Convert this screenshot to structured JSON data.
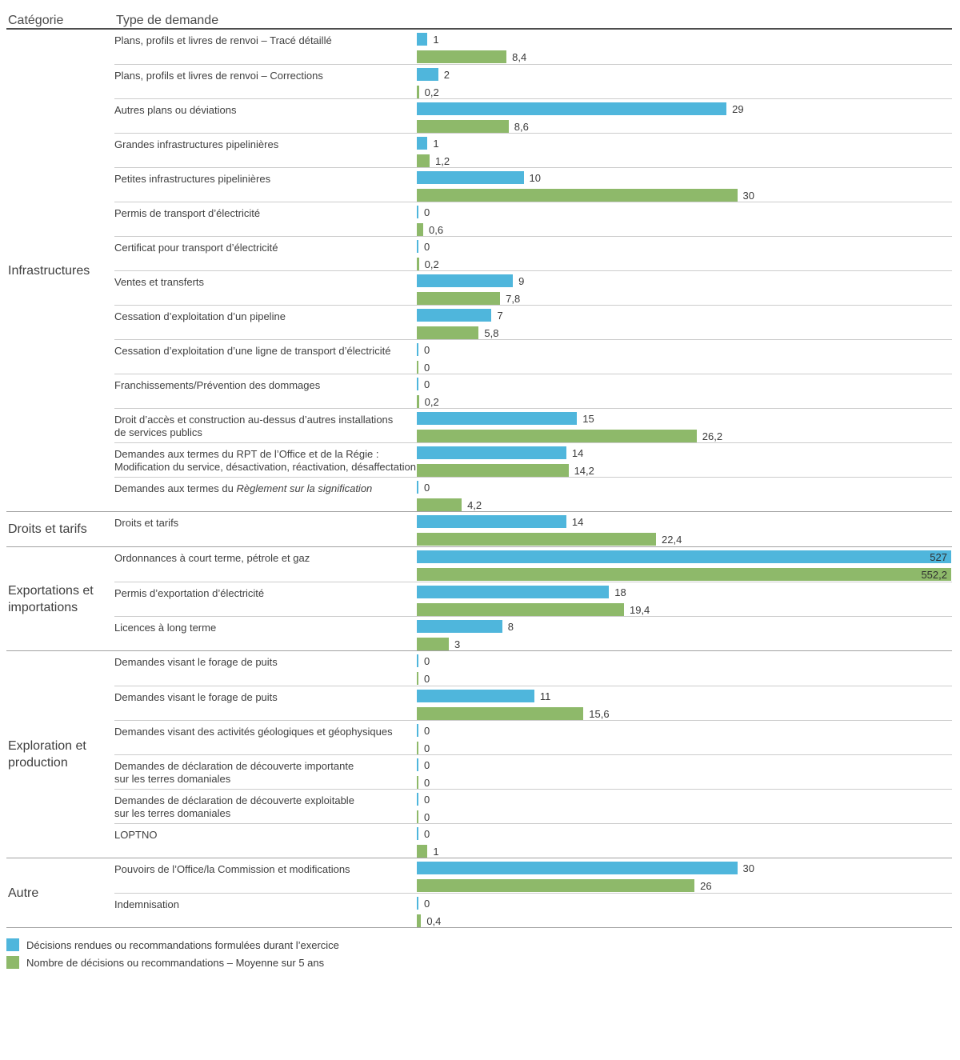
{
  "header": {
    "category_col": "Catégorie",
    "type_col": "Type de demande"
  },
  "colors": {
    "current": "#4fb6dc",
    "average": "#8eb96a"
  },
  "legend": [
    {
      "series": "current",
      "label": "Décisions rendues ou recommandations formulées durant l’exercice"
    },
    {
      "series": "average",
      "label": "Nombre de décisions ou recommandations – Moyenne sur 5 ans"
    }
  ],
  "chart_data": {
    "type": "bar",
    "orientation": "horizontal",
    "series": [
      {
        "name": "Décisions rendues ou recommandations formulées durant l’exercice",
        "key": "current",
        "color": "#4fb6dc"
      },
      {
        "name": "Nombre de décisions ou recommandations – Moyenne sur 5 ans",
        "key": "average",
        "color": "#8eb96a"
      }
    ],
    "value_axis_visible_max": 50,
    "note": "Bars for 527 and 552,2 are clipped at full chart width with value labels inside the bars",
    "groups": [
      {
        "category": "Infrastructures",
        "rows": [
          {
            "label": "Plans, profils et livres de renvoi – Tracé détaillé",
            "current": 1,
            "average": 8.4,
            "current_label": "1",
            "average_label": "8,4"
          },
          {
            "label": "Plans, profils et livres de renvoi – Corrections",
            "current": 2,
            "average": 0.2,
            "current_label": "2",
            "average_label": "0,2"
          },
          {
            "label": "Autres plans ou déviations",
            "current": 29,
            "average": 8.6,
            "current_label": "29",
            "average_label": "8,6"
          },
          {
            "label": "Grandes infrastructures pipelinières",
            "current": 1,
            "average": 1.2,
            "current_label": "1",
            "average_label": "1,2"
          },
          {
            "label": "Petites infrastructures pipelinières",
            "current": 10,
            "average": 30,
            "current_label": "10",
            "average_label": "30"
          },
          {
            "label": "Permis de transport d’électricité",
            "current": 0,
            "average": 0.6,
            "current_label": "0",
            "average_label": "0,6"
          },
          {
            "label": "Certificat pour transport d’électricité",
            "current": 0,
            "average": 0.2,
            "current_label": "0",
            "average_label": "0,2"
          },
          {
            "label": "Ventes et transferts",
            "current": 9,
            "average": 7.8,
            "current_label": "9",
            "average_label": "7,8"
          },
          {
            "label": "Cessation d’exploitation d’un pipeline",
            "current": 7,
            "average": 5.8,
            "current_label": "7",
            "average_label": "5,8"
          },
          {
            "label": "Cessation d’exploitation d’une ligne de transport d’électricité",
            "current": 0,
            "average": 0,
            "current_label": "0",
            "average_label": "0"
          },
          {
            "label": "Franchissements/Prévention des dommages",
            "current": 0,
            "average": 0.2,
            "current_label": "0",
            "average_label": "0,2"
          },
          {
            "label": "Droit d’accès et construction au-dessus d’autres installations",
            "label2": "de services publics",
            "current": 15,
            "average": 26.2,
            "current_label": "15",
            "average_label": "26,2"
          },
          {
            "label": "Demandes aux termes du RPT de l’Office et de la Régie :",
            "label2": "Modification du service, désactivation, réactivation, désaffectation",
            "current": 14,
            "average": 14.2,
            "current_label": "14",
            "average_label": "14,2"
          },
          {
            "label": "Demandes aux termes du ",
            "label_italic": "Règlement sur la signification",
            "current": 0,
            "average": 4.2,
            "current_label": "0",
            "average_label": "4,2"
          }
        ]
      },
      {
        "category": "Droits et tarifs",
        "rows": [
          {
            "label": "Droits et tarifs",
            "current": 14,
            "average": 22.4,
            "current_label": "14",
            "average_label": "22,4"
          }
        ]
      },
      {
        "category": "Exportations et importations",
        "rows": [
          {
            "label": "Ordonnances à court terme, pétrole et gaz",
            "current": 527,
            "average": 552.2,
            "current_label": "527",
            "average_label": "552,2"
          },
          {
            "label": "Permis d’exportation d’électricité",
            "current": 18,
            "average": 19.4,
            "current_label": "18",
            "average_label": "19,4"
          },
          {
            "label": "Licences à long terme",
            "current": 8,
            "average": 3,
            "current_label": "8",
            "average_label": "3"
          }
        ]
      },
      {
        "category": "Exploration et production",
        "rows": [
          {
            "label": "Demandes visant le forage de puits",
            "current": 0,
            "average": 0,
            "current_label": "0",
            "average_label": "0"
          },
          {
            "label": "Demandes visant le forage de puits",
            "current": 11,
            "average": 15.6,
            "current_label": "11",
            "average_label": "15,6"
          },
          {
            "label": "Demandes visant des activités géologiques et géophysiques",
            "current": 0,
            "average": 0,
            "current_label": "0",
            "average_label": "0"
          },
          {
            "label": "Demandes de déclaration de découverte importante",
            "label2": "sur les terres domaniales",
            "current": 0,
            "average": 0,
            "current_label": "0",
            "average_label": "0"
          },
          {
            "label": "Demandes de déclaration de découverte exploitable",
            "label2": "sur les terres domaniales",
            "current": 0,
            "average": 0,
            "current_label": "0",
            "average_label": "0"
          },
          {
            "label": "LOPTNO",
            "current": 0,
            "average": 1,
            "current_label": "0",
            "average_label": "1"
          }
        ]
      },
      {
        "category": "Autre",
        "rows": [
          {
            "label": "Pouvoirs de l’Office/la Commission et modifications",
            "current": 30,
            "average": 26,
            "current_label": "30",
            "average_label": "26"
          },
          {
            "label": "Indemnisation",
            "current": 0,
            "average": 0.4,
            "current_label": "0",
            "average_label": "0,4"
          }
        ]
      }
    ]
  }
}
